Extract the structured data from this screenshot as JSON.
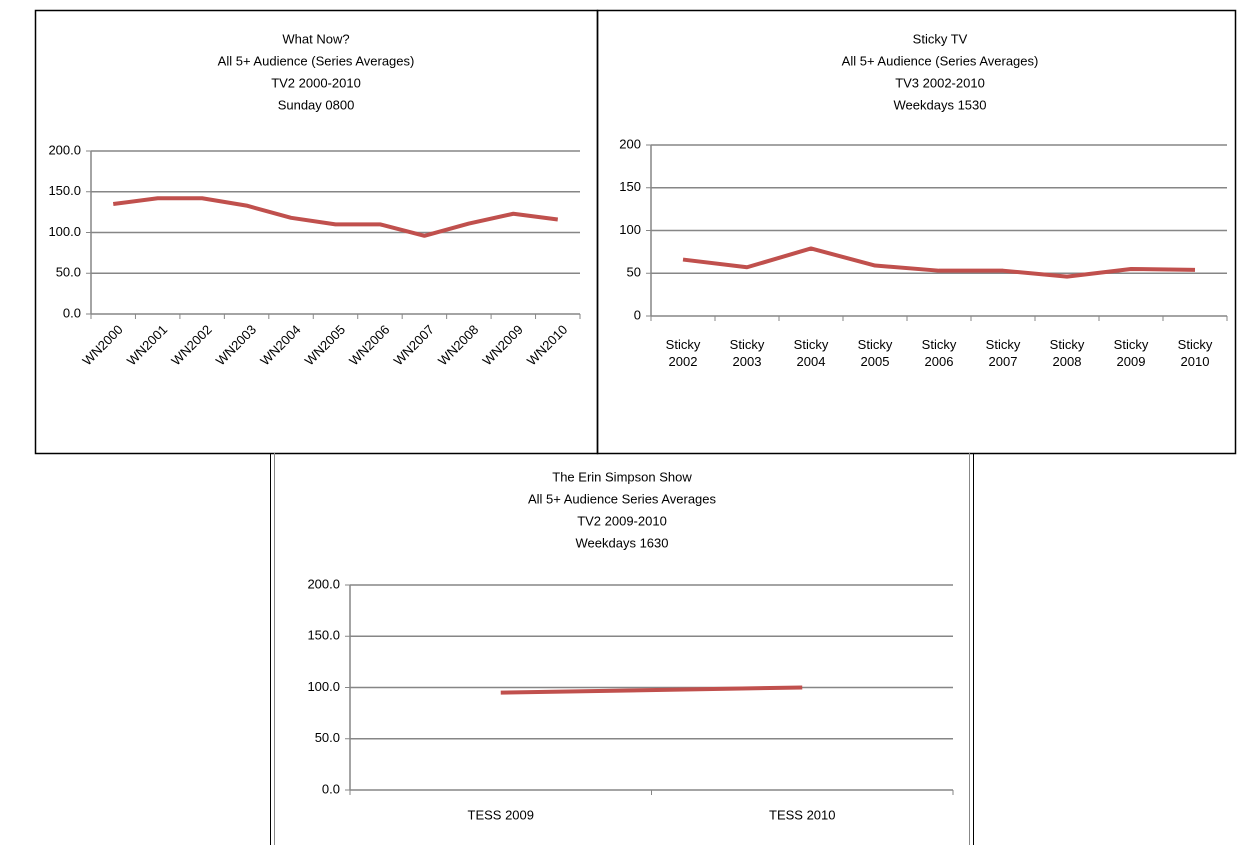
{
  "chart_data": [
    {
      "type": "line",
      "title": [
        "What Now?",
        "All 5+ Audience (Series Averages)",
        "TV2 2000-2010",
        "Sunday 0800"
      ],
      "categories": [
        "WN2000",
        "WN2001",
        "WN2002",
        "WN2003",
        "WN2004",
        "WN2005",
        "WN2006",
        "WN2007",
        "WN2008",
        "WN2009",
        "WN2010"
      ],
      "values": [
        135,
        142,
        142,
        133,
        118,
        110,
        110,
        96,
        111,
        123,
        116
      ],
      "color": "#c0504d",
      "ylim": [
        0,
        200
      ],
      "yticks": [
        {
          "value": 0,
          "label": "0.0"
        },
        {
          "value": 50,
          "label": "50.0"
        },
        {
          "value": 100,
          "label": "100.0"
        },
        {
          "value": 150,
          "label": "150.0"
        },
        {
          "value": 200,
          "label": "200.0"
        }
      ],
      "grid": true
    },
    {
      "type": "line",
      "title": [
        "Sticky TV",
        "All 5+ Audience (Series Averages)",
        "TV3 2002-2010",
        "Weekdays 1530"
      ],
      "categories": [
        "Sticky 2002",
        "Sticky 2003",
        "Sticky 2004",
        "Sticky 2005",
        "Sticky 2006",
        "Sticky 2007",
        "Sticky 2008",
        "Sticky 2009",
        "Sticky 2010"
      ],
      "values": [
        66,
        57,
        79,
        59,
        53,
        53,
        46,
        55,
        54
      ],
      "color": "#c0504d",
      "ylim": [
        0,
        200
      ],
      "yticks": [
        0,
        50,
        100,
        150,
        200
      ],
      "grid": true
    },
    {
      "type": "line",
      "title": [
        "The Erin Simpson Show",
        "All 5+ Audience Series Averages",
        "TV2 2009-2010",
        "Weekdays 1630"
      ],
      "categories": [
        "TESS 2009",
        "TESS 2010"
      ],
      "values": [
        95,
        100
      ],
      "color": "#c0504d",
      "ylim": [
        0,
        200
      ],
      "yticks": [
        {
          "value": 0,
          "label": "0.0"
        },
        {
          "value": 50,
          "label": "50.0"
        },
        {
          "value": 100,
          "label": "100.0"
        },
        {
          "value": 150,
          "label": "150.0"
        },
        {
          "value": 200,
          "label": "200.0"
        }
      ],
      "grid": true
    }
  ]
}
